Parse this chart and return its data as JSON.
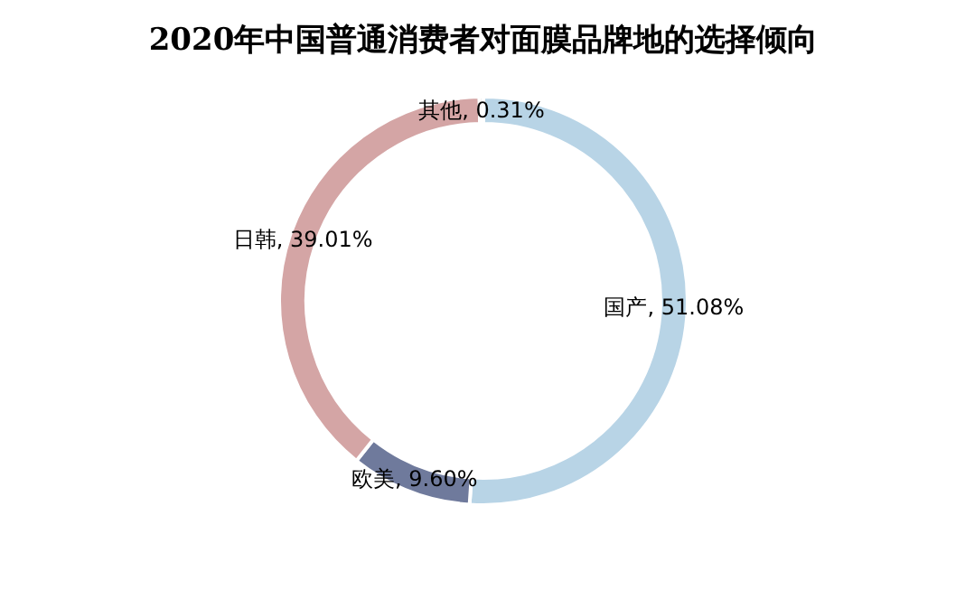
{
  "chart_data": {
    "type": "donut",
    "title": "2020年中国普通消费者对面膜品牌地的选择倾向",
    "categories": [
      "国产",
      "欧美",
      "日韩",
      "其他"
    ],
    "values": [
      51.08,
      9.6,
      39.01,
      0.31
    ],
    "value_labels": [
      "51.08%",
      "9.60%",
      "39.01%",
      "0.31%"
    ],
    "colors": [
      "#b8d4e6",
      "#6f7a9c",
      "#d4a5a5",
      "#d9d9d9"
    ]
  }
}
